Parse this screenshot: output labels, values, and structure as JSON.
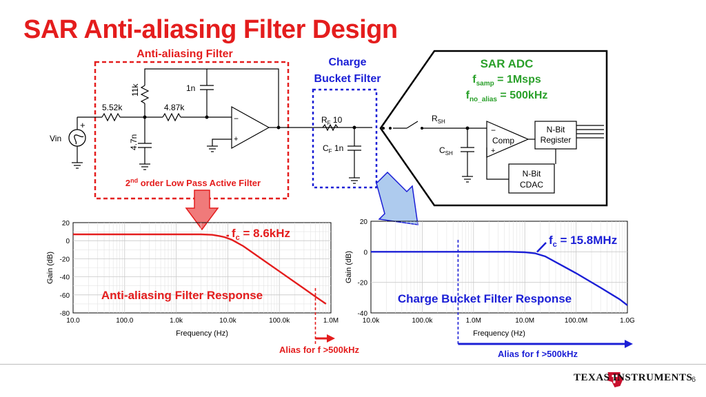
{
  "slide": {
    "title": "SAR Anti-aliasing Filter Design",
    "page_number": "6",
    "logo_text": "TEXAS INSTRUMENTS"
  },
  "colors": {
    "title": "#e41d1d",
    "red_trace": "#e41d1d",
    "blue_trace": "#1b1fd6",
    "adc_label": "#2aa02a",
    "red_arrow": "#f07a7a",
    "blue_arrow": "#aecbee"
  },
  "schematic": {
    "aaf_title": "Anti-aliasing Filter",
    "aaf_caption_prefix": "2",
    "aaf_caption_sup": "nd",
    "aaf_caption_rest": " order Low Pass Active Filter",
    "vin_label": "Vin",
    "plus_sign": "+",
    "minus_sign": "−",
    "r1": "5.52k",
    "r2": "11k",
    "r3": "4.87k",
    "c_feedback": "1n",
    "c_ground": "4.7n",
    "cbf_title_line1": "Charge",
    "cbf_title_line2": "Bucket Filter",
    "rf_main": "R",
    "rf_sub": "F",
    "rf_value": " 10",
    "cf_main": "C",
    "cf_sub": "F",
    "cf_value": " 1n",
    "adc_title": "SAR ADC",
    "fsamp_main": "f",
    "fsamp_sub": "samp",
    "fsamp_value": " = 1Msps",
    "falias_main": "f",
    "falias_sub": "no_alias",
    "falias_value": " = 500kHz",
    "rsh_main": "R",
    "rsh_sub": "SH",
    "csh_main": "C",
    "csh_sub": "SH",
    "comp_label": "Comp",
    "register_line1": "N-Bit",
    "register_line2": "Register",
    "cdac_line1": "N-Bit",
    "cdac_line2": "CDAC"
  },
  "chart_data": [
    {
      "type": "line",
      "title": "Anti-aliasing Filter Response",
      "xlabel": "Frequency (Hz)",
      "ylabel": "Gain (dB)",
      "x_scale": "log",
      "xlim": [
        10,
        1000000
      ],
      "ylim": [
        -80,
        20
      ],
      "x_ticks": [
        "10.0",
        "100.0",
        "1.0k",
        "10.0k",
        "100.0k",
        "1.0M"
      ],
      "y_ticks": [
        "20",
        "0",
        "-20",
        "-40",
        "-60",
        "-80"
      ],
      "grid": true,
      "series": [
        {
          "color": "#e41d1d",
          "points": [
            [
              10,
              7
            ],
            [
              100,
              7
            ],
            [
              1000,
              7
            ],
            [
              3000,
              7
            ],
            [
              5000,
              6.5
            ],
            [
              7000,
              5
            ],
            [
              8600,
              4
            ],
            [
              12000,
              1
            ],
            [
              20000,
              -6
            ],
            [
              50000,
              -22
            ],
            [
              100000,
              -34
            ],
            [
              300000,
              -53
            ],
            [
              500000,
              -62
            ],
            [
              800000,
              -70
            ]
          ]
        }
      ],
      "annotation": {
        "main": "f",
        "sub": "c",
        "value": " = 8.6kHz",
        "x": 8600,
        "y": 4
      },
      "marker_x": 500000,
      "marker_label": "Alias for f >500kHz"
    },
    {
      "type": "line",
      "title": "Charge Bucket Filter Response",
      "xlabel": "Frequency (Hz)",
      "ylabel": "Gain (dB)",
      "x_scale": "log",
      "xlim": [
        10000,
        1000000000
      ],
      "ylim": [
        -40,
        20
      ],
      "x_ticks": [
        "10.0k",
        "100.0k",
        "1.0M",
        "10.0M",
        "100.0M",
        "1.0G"
      ],
      "y_ticks": [
        "20",
        "0",
        "-20",
        "-40"
      ],
      "grid": true,
      "series": [
        {
          "color": "#1b1fd6",
          "points": [
            [
              10000,
              0
            ],
            [
              1000000,
              0
            ],
            [
              5000000,
              0
            ],
            [
              10000000,
              -0.3
            ],
            [
              15800000,
              -1
            ],
            [
              25000000,
              -3
            ],
            [
              50000000,
              -8.5
            ],
            [
              100000000,
              -14
            ],
            [
              300000000,
              -23.5
            ],
            [
              700000000,
              -31
            ],
            [
              1000000000,
              -35
            ]
          ]
        }
      ],
      "annotation": {
        "main": "f",
        "sub": "c",
        "value": " = 15.8MHz",
        "x": 15800000,
        "y": -1
      },
      "marker_x": 500000,
      "marker_label": "Alias for f >500kHz"
    }
  ]
}
